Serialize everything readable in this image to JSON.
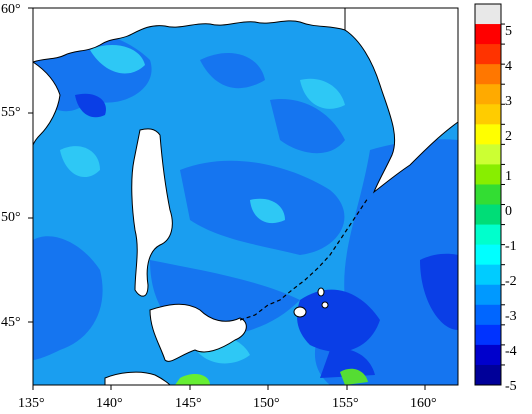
{
  "map": {
    "lon_labels": [
      "135°",
      "140°",
      "145°",
      "150°",
      "155°",
      "160°"
    ],
    "lat_labels": [
      "60°",
      "55°",
      "50°",
      "45°"
    ],
    "lon_range": [
      135,
      162
    ],
    "lat_range": [
      42,
      60
    ]
  },
  "colorbar": {
    "labels": [
      "5",
      "4",
      "3",
      "2",
      "1",
      "0",
      "-1",
      "-2",
      "-3",
      "-4",
      "-5"
    ],
    "colors": [
      "#e8e8e8",
      "#ff0000",
      "#ff3300",
      "#ff7700",
      "#ffaa00",
      "#ffcc00",
      "#ffff00",
      "#ccff33",
      "#88ee00",
      "#33dd33",
      "#00dd77",
      "#00ffcc",
      "#00ffff",
      "#00ccff",
      "#0099ff",
      "#0066ff",
      "#0033ff",
      "#0000cc",
      "#000099"
    ]
  },
  "field_colors": {
    "sea_dominant": "#1a9ef0",
    "sea_light": "#2ec8f5",
    "sea_medium": "#1575f0",
    "sea_dark": "#0a3ee6",
    "land": "#ffffff",
    "anomaly_green": "#66ee33"
  }
}
